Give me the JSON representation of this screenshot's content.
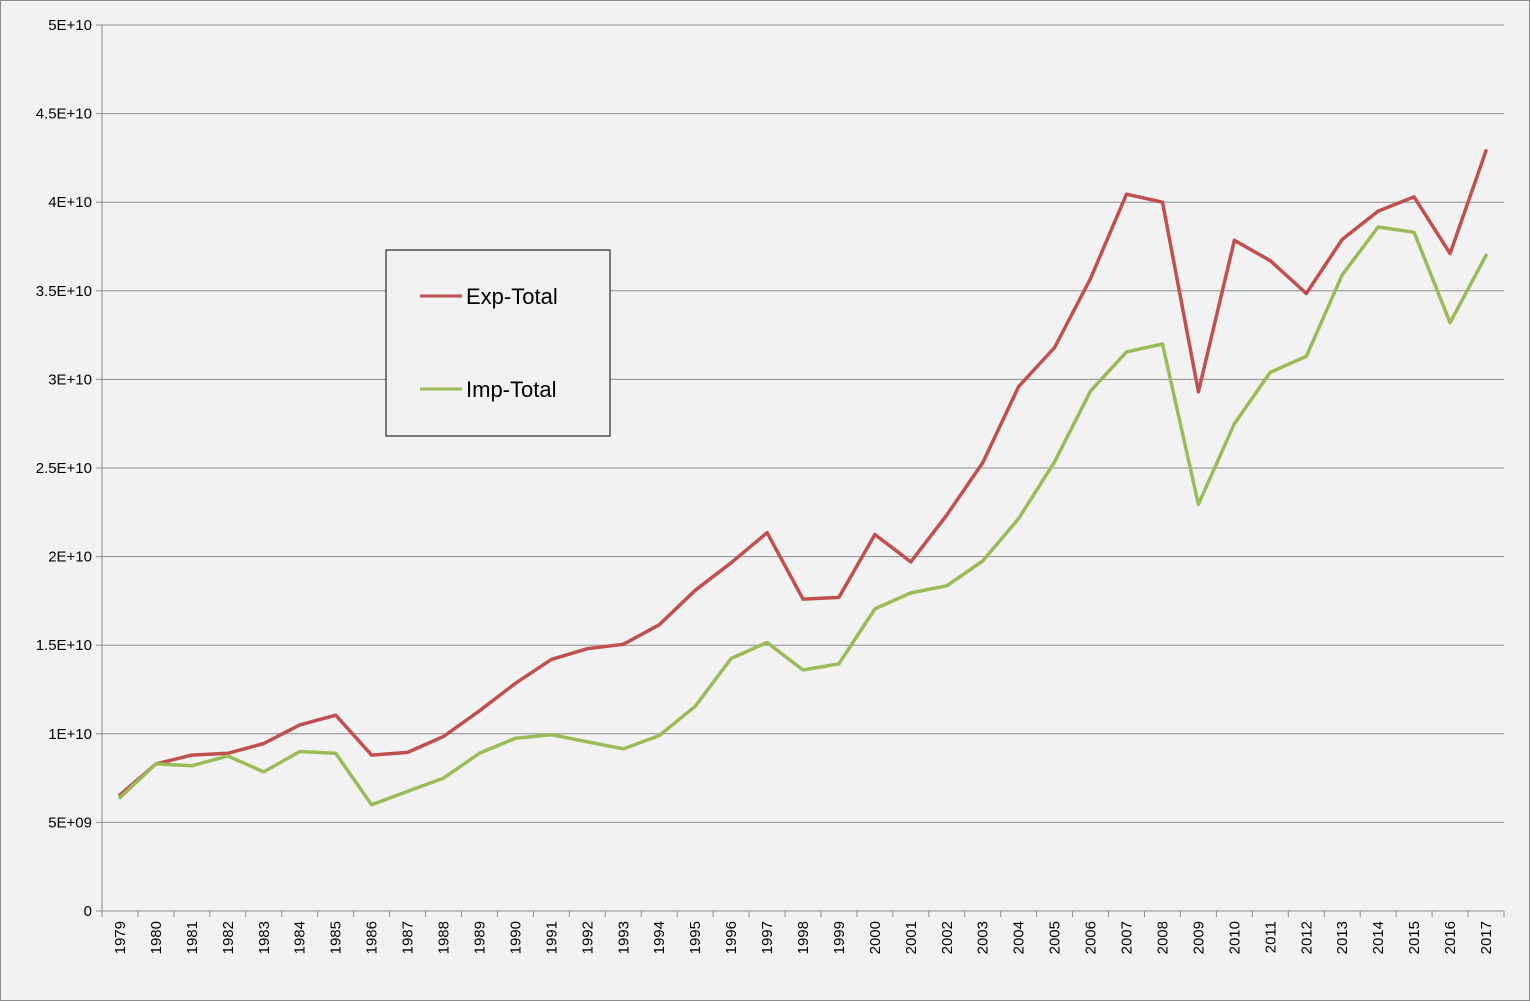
{
  "chart_data": {
    "type": "line",
    "title": "",
    "xlabel": "",
    "ylabel": "",
    "categories": [
      "1979",
      "1980",
      "1981",
      "1982",
      "1983",
      "1984",
      "1985",
      "1986",
      "1987",
      "1988",
      "1989",
      "1990",
      "1991",
      "1992",
      "1993",
      "1994",
      "1995",
      "1996",
      "1997",
      "1998",
      "1999",
      "2000",
      "2001",
      "2002",
      "2003",
      "2004",
      "2005",
      "2006",
      "2007",
      "2008",
      "2009",
      "2010",
      "2011",
      "2012",
      "2013",
      "2014",
      "2015",
      "2016",
      "2017"
    ],
    "ylim": [
      0,
      50000000000
    ],
    "yticks": [
      0,
      5000000000,
      10000000000,
      15000000000,
      20000000000,
      25000000000,
      30000000000,
      35000000000,
      40000000000,
      45000000000,
      50000000000
    ],
    "ytick_labels": [
      "0",
      "5E+09",
      "1E+10",
      "1.5E+10",
      "2E+10",
      "2.5E+10",
      "3E+10",
      "3.5E+10",
      "4E+10",
      "4.5E+10",
      "5E+10"
    ],
    "grid": true,
    "legend_position": "upper-left-inside",
    "series": [
      {
        "name": "Exp-Total",
        "color": "#c0504d",
        "values": [
          6550000000,
          8300000000,
          8800000000,
          8900000000,
          9450000000,
          10500000000,
          11050000000,
          8800000000,
          8950000000,
          9850000000,
          11300000000,
          12850000000,
          14200000000,
          14800000000,
          15050000000,
          16150000000,
          18100000000,
          19650000000,
          21350000000,
          17600000000,
          17700000000,
          21250000000,
          19700000000,
          22350000000,
          25300000000,
          29600000000,
          31800000000,
          35700000000,
          40450000000,
          40000000000,
          29300000000,
          37850000000,
          36700000000,
          34850000000,
          37900000000,
          39500000000,
          40300000000,
          37100000000,
          42900000000
        ]
      },
      {
        "name": "Imp-Total",
        "color": "#9bbb59",
        "values": [
          6400000000,
          8300000000,
          8200000000,
          8750000000,
          7850000000,
          9000000000,
          8900000000,
          6000000000,
          6750000000,
          7500000000,
          8900000000,
          9750000000,
          9950000000,
          9550000000,
          9150000000,
          9900000000,
          11550000000,
          14250000000,
          15150000000,
          13600000000,
          13950000000,
          17050000000,
          17950000000,
          18350000000,
          19750000000,
          22150000000,
          25350000000,
          29350000000,
          31550000000,
          32000000000,
          22950000000,
          27500000000,
          30400000000,
          31300000000,
          35900000000,
          38600000000,
          38300000000,
          33200000000,
          37000000000
        ]
      }
    ]
  }
}
